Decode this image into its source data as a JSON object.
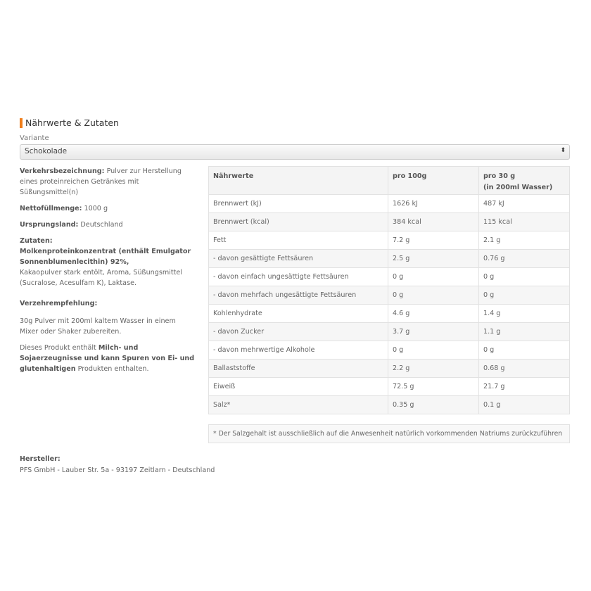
{
  "section_title": "Nährwerte & Zutaten",
  "variant": {
    "label": "Variante",
    "selected": "Schokolade"
  },
  "info": {
    "verkehr_label": "Verkehrsbezeichnung:",
    "verkehr_text": " Pulver zur Herstellung eines proteinreichen Getränkes  mit Süßungsmittel(n)",
    "netto_label": "Nettofüllmenge:",
    "netto_text": " 1000 g",
    "ursprung_label": "Ursprungsland:",
    "ursprung_text": " Deutschland",
    "zutaten_label": "Zutaten:",
    "zutaten_bold": "Molkenproteinkonzentrat (enthält Emulgator Sonnenblumenlecithin) 92%,",
    "zutaten_text": "Kakaopulver stark entölt,    Aroma, Süßungsmittel (Sucralose, Acesulfam K),    Laktase.",
    "verzehr_label": "Verzehrempfehlung:",
    "verzehr_text": "30g Pulver mit 200ml kaltem Wasser in einem Mixer oder Shaker zubereiten.",
    "allergen_pre": "Dieses Produkt enthält ",
    "allergen_bold1": "Milch- und Sojaerzeugnisse und kann Spuren von Ei- und glutenhaltigen",
    "allergen_post": " Produkten enthalten."
  },
  "table": {
    "headers": [
      "Nährwerte",
      "pro 100g",
      "pro 30 g",
      "(in 200ml Wasser)"
    ],
    "rows": [
      [
        "Brennwert (kJ)",
        "1626 kJ",
        "487 kJ"
      ],
      [
        "Brennwert (kcal)",
        "384 kcal",
        "115 kcal"
      ],
      [
        "Fett",
        "7.2 g",
        "2.1 g"
      ],
      [
        "- davon gesättigte Fettsäuren",
        "2.5 g",
        "0.76 g"
      ],
      [
        "- davon einfach ungesättigte Fettsäuren",
        "0 g",
        "0 g"
      ],
      [
        "- davon mehrfach ungesättigte Fettsäuren",
        "0 g",
        "0 g"
      ],
      [
        "Kohlenhydrate",
        "4.6 g",
        "1.4 g"
      ],
      [
        "- davon Zucker",
        "3.7 g",
        "1.1 g"
      ],
      [
        "- davon mehrwertige Alkohole",
        "0 g",
        "0 g"
      ],
      [
        "Ballaststoffe",
        "2.2 g",
        "0.68 g"
      ],
      [
        "Eiweiß",
        "72.5 g",
        "21.7 g"
      ],
      [
        "Salz*",
        "0.35 g",
        "0.1 g"
      ]
    ],
    "footnote": "* Der Salzgehalt ist ausschließlich auf die Anwesenheit natürlich vorkommenden Natriums zurückzuführen"
  },
  "hersteller": {
    "label": "Hersteller:",
    "text": "PFS GmbH - Lauber Str. 5a - 93197 Zeitlarn - Deutschland"
  },
  "colors": {
    "accent": "#f07d1a"
  }
}
